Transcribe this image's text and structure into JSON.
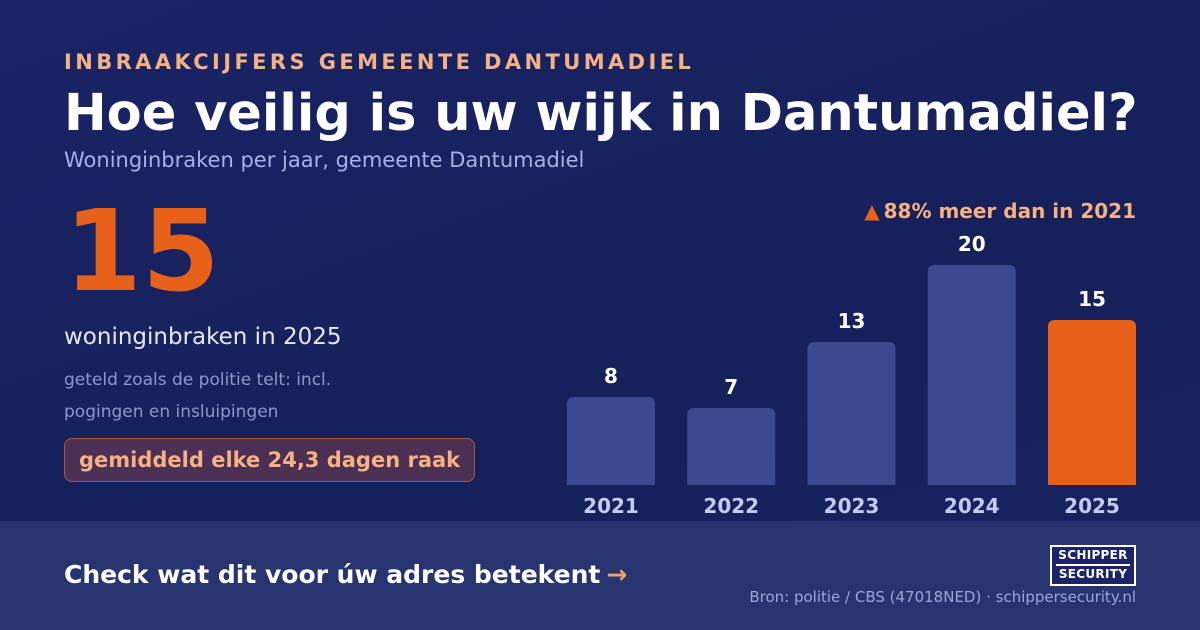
{
  "header": {
    "eyebrow": "INBRAAKCIJFERS GEMEENTE DANTUMADIEL",
    "title": "Hoe veilig is uw wijk in Dantumadiel?",
    "subtitle": "Woninginbraken per jaar, gemeente Dantumadiel"
  },
  "stat": {
    "value": "15",
    "label": "woninginbraken in 2025",
    "note": "geteld zoals de politie telt: incl. pogingen en insluipingen",
    "frequency": "gemiddeld elke 24,3 dagen raak"
  },
  "change": {
    "arrow": "▲",
    "text": "88% meer dan in 2021"
  },
  "chart_data": {
    "type": "bar",
    "categories": [
      "2021",
      "2022",
      "2023",
      "2024",
      "2025"
    ],
    "values": [
      8,
      7,
      13,
      20,
      15
    ],
    "highlight_index": 4,
    "colors": {
      "bar": "#3b4a8f",
      "highlight": "#e8611a"
    },
    "data_labels": true,
    "grid": false,
    "ylim": [
      0,
      20
    ]
  },
  "footer": {
    "cta": "Check wat dit voor úw adres betekent",
    "cta_arrow": "→",
    "logo_line1": "SCHIPPER",
    "logo_line2": "SECURITY",
    "source": "Bron: politie / CBS (47018NED) · schippersecurity.nl"
  },
  "colors": {
    "background": "#1a2466",
    "accent": "#e8611a",
    "accent_light": "#f4b183",
    "footer": "#28346f"
  }
}
